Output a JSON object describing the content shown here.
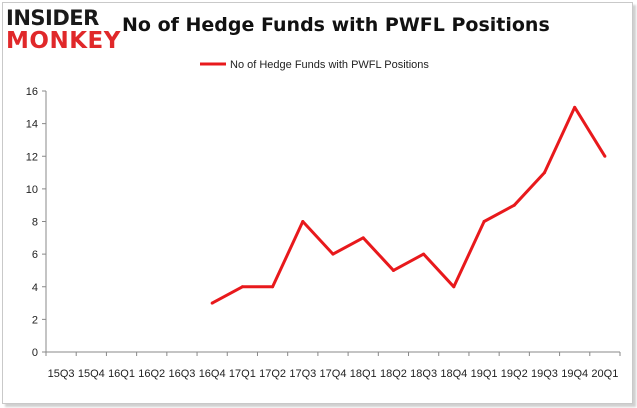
{
  "logo": {
    "line1": "INSIDER",
    "line2": "MONKEY"
  },
  "colors": {
    "series": "#e8191c",
    "brand_red": "#e0282a",
    "axis": "#888888",
    "grid": "#e6e6e6"
  },
  "chart_data": {
    "type": "line",
    "title": "No of Hedge Funds with PWFL Positions",
    "xlabel": "",
    "ylabel": "",
    "categories": [
      "15Q3",
      "15Q4",
      "16Q1",
      "16Q2",
      "16Q3",
      "16Q4",
      "17Q1",
      "17Q2",
      "17Q3",
      "17Q4",
      "18Q1",
      "18Q2",
      "18Q3",
      "18Q4",
      "19Q1",
      "19Q2",
      "19Q3",
      "19Q4",
      "20Q1"
    ],
    "series": [
      {
        "name": "No of Hedge Funds with PWFL Positions",
        "values": [
          null,
          null,
          null,
          null,
          null,
          3,
          4,
          4,
          8,
          6,
          7,
          5,
          6,
          4,
          8,
          9,
          11,
          15,
          12
        ]
      }
    ],
    "ylim": [
      0,
      16
    ],
    "yticks": [
      0,
      2,
      4,
      6,
      8,
      10,
      12,
      14,
      16
    ],
    "grid": false,
    "legend_position": "top-center"
  }
}
